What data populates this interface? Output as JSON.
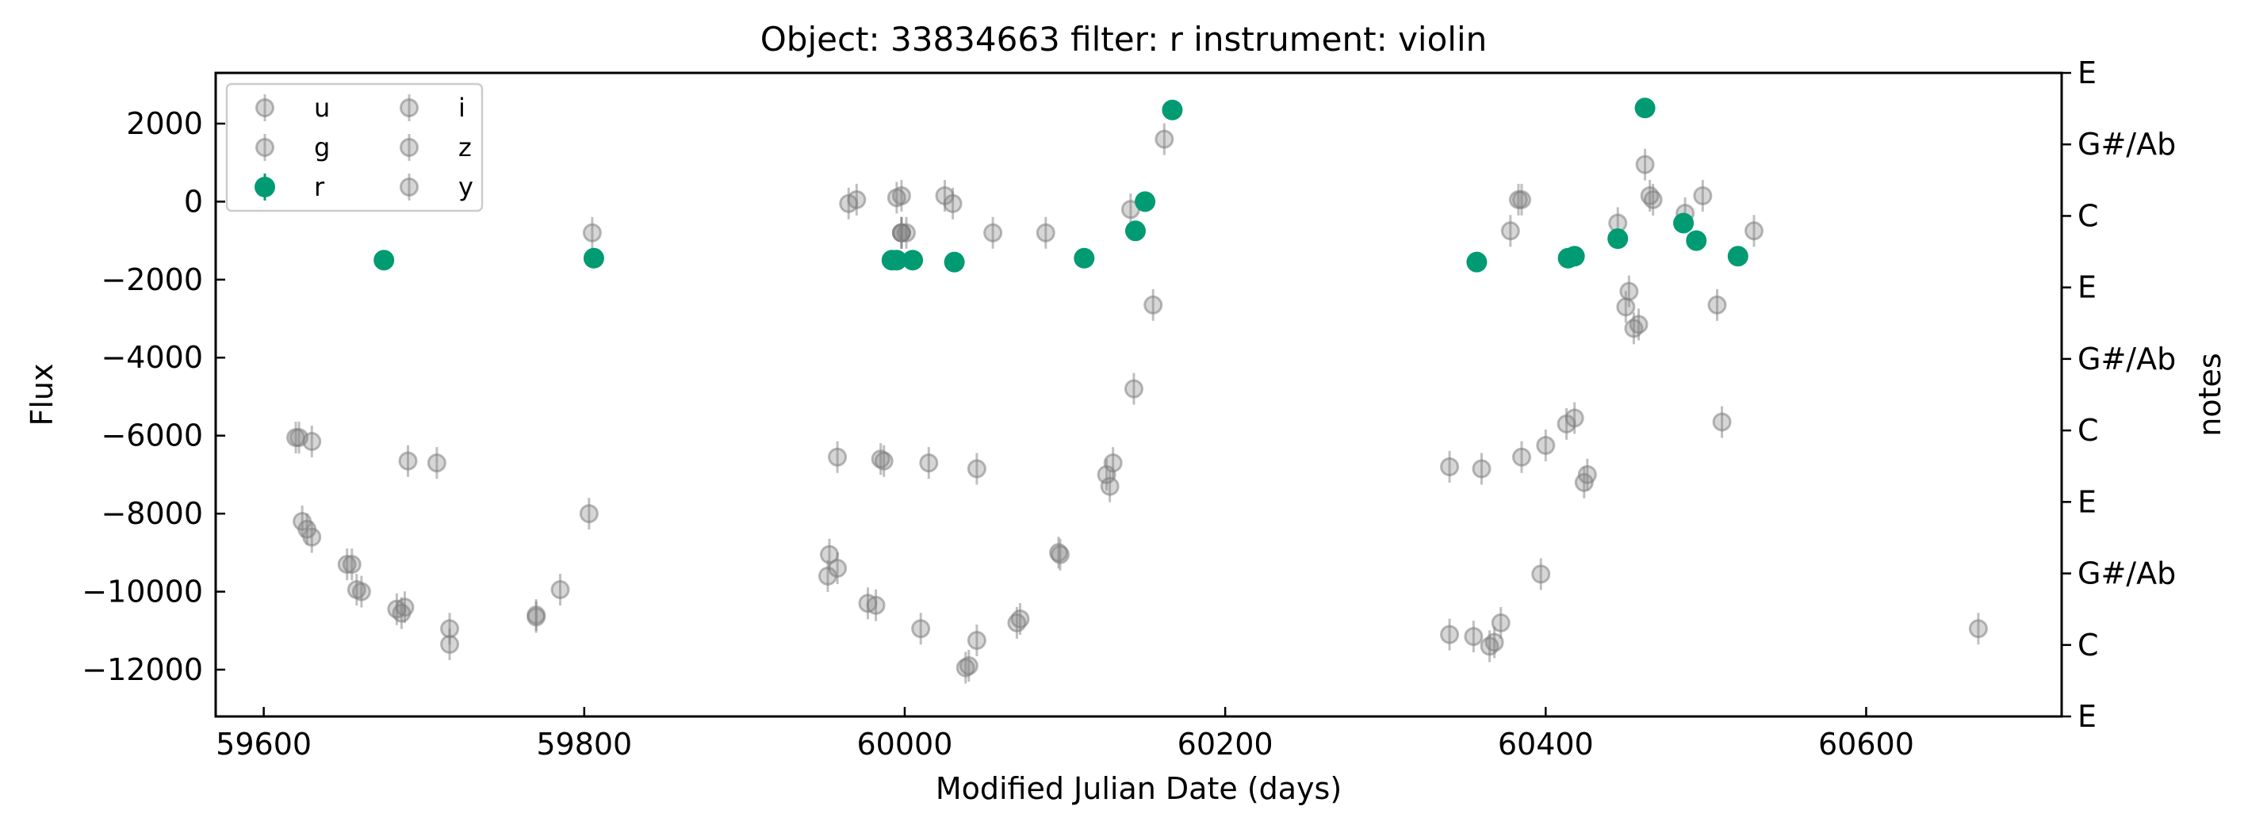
{
  "chart_data": {
    "type": "scatter",
    "title": "Object: 33834663 filter: r instrument: violin",
    "xlabel": "Modified Julian Date (days)",
    "ylabel": "Flux",
    "y2label": "notes",
    "xlim": [
      59570,
      60722
    ],
    "ylim": [
      -13200,
      3300
    ],
    "xticks": [
      59600,
      59800,
      60000,
      60200,
      60400,
      60600
    ],
    "yticks": [
      2000,
      0,
      -2000,
      -4000,
      -6000,
      -8000,
      -10000,
      -12000
    ],
    "y2ticks": [
      {
        "y": 3300,
        "label": "E"
      },
      {
        "y": 1467,
        "label": "G#/Ab"
      },
      {
        "y": -367,
        "label": "C"
      },
      {
        "y": -2200,
        "label": "E"
      },
      {
        "y": -4033,
        "label": "G#/Ab"
      },
      {
        "y": -5867,
        "label": "C"
      },
      {
        "y": -7700,
        "label": "E"
      },
      {
        "y": -9533,
        "label": "G#/Ab"
      },
      {
        "y": -11367,
        "label": "C"
      },
      {
        "y": -13200,
        "label": "E"
      }
    ],
    "grid": false,
    "legend": {
      "placement": "top-left",
      "columns": 2,
      "order": [
        "u",
        "g",
        "r",
        "i",
        "z",
        "y"
      ]
    },
    "colors": {
      "highlight": "#009b72",
      "faded": "#808080"
    },
    "series": [
      {
        "name": "r",
        "highlight": true,
        "points": [
          [
            59675,
            -1500
          ],
          [
            59806,
            -1450
          ],
          [
            59992,
            -1500
          ],
          [
            59995,
            -1500
          ],
          [
            60005,
            -1500
          ],
          [
            60031,
            -1550
          ],
          [
            60112,
            -1450
          ],
          [
            60144,
            -750
          ],
          [
            60150,
            0
          ],
          [
            60167,
            2350
          ],
          [
            60357,
            -1550
          ],
          [
            60414,
            -1450
          ],
          [
            60418,
            -1400
          ],
          [
            60445,
            -950
          ],
          [
            60462,
            2400
          ],
          [
            60486,
            -550
          ],
          [
            60494,
            -1000
          ],
          [
            60520,
            -1400
          ]
        ]
      },
      {
        "name": "u",
        "highlight": false,
        "points": [
          [
            59620,
            -6050
          ],
          [
            59622,
            -6050
          ],
          [
            59624,
            -8200
          ],
          [
            59627,
            -8400
          ],
          [
            59630,
            -8600
          ],
          [
            59652,
            -9300
          ],
          [
            59655,
            -9300
          ],
          [
            59658,
            -9950
          ],
          [
            59661,
            -10000
          ],
          [
            59683,
            -10450
          ],
          [
            59686,
            -10550
          ],
          [
            59688,
            -10400
          ],
          [
            59716,
            -10950
          ],
          [
            59770,
            -10650
          ],
          [
            59785,
            -9950
          ],
          [
            59803,
            -8000
          ],
          [
            59953,
            -9050
          ],
          [
            59958,
            -9400
          ],
          [
            59977,
            -10300
          ],
          [
            59982,
            -10350
          ],
          [
            60010,
            -10950
          ],
          [
            60038,
            -11950
          ],
          [
            60040,
            -11900
          ],
          [
            60045,
            -11250
          ],
          [
            60072,
            -10700
          ],
          [
            60096,
            -9000
          ],
          [
            60126,
            -7000
          ],
          [
            60128,
            -7300
          ],
          [
            60340,
            -11100
          ],
          [
            60355,
            -11150
          ],
          [
            60368,
            -11300
          ],
          [
            60372,
            -10800
          ],
          [
            60397,
            -9550
          ],
          [
            60424,
            -7200
          ],
          [
            60426,
            -7000
          ]
        ]
      },
      {
        "name": "g",
        "highlight": false,
        "points": [
          [
            59630,
            -6150
          ],
          [
            59690,
            -6650
          ],
          [
            59708,
            -6700
          ],
          [
            59716,
            -11350
          ],
          [
            59770,
            -10600
          ],
          [
            59952,
            -9600
          ],
          [
            59958,
            -6550
          ],
          [
            59985,
            -6600
          ],
          [
            59987,
            -6650
          ],
          [
            60015,
            -6700
          ],
          [
            60045,
            -6850
          ],
          [
            60070,
            -10800
          ],
          [
            60097,
            -9050
          ],
          [
            60130,
            -6700
          ],
          [
            60340,
            -6800
          ],
          [
            60360,
            -6850
          ],
          [
            60365,
            -11400
          ],
          [
            60385,
            -6550
          ],
          [
            60400,
            -6250
          ],
          [
            60413,
            -5700
          ],
          [
            60418,
            -5550
          ],
          [
            60510,
            -5650
          ],
          [
            60670,
            -10950
          ]
        ]
      },
      {
        "name": "i",
        "highlight": false,
        "points": [
          [
            59965,
            -50
          ],
          [
            59970,
            50
          ],
          [
            59995,
            100
          ],
          [
            59998,
            150
          ],
          [
            59998,
            -800
          ],
          [
            60025,
            150
          ],
          [
            60030,
            -50
          ],
          [
            60088,
            -800
          ],
          [
            60141,
            -200
          ],
          [
            60143,
            -4800
          ],
          [
            60155,
            -2650
          ],
          [
            60162,
            1600
          ],
          [
            60378,
            -750
          ],
          [
            60383,
            50
          ],
          [
            60385,
            50
          ],
          [
            60445,
            -550
          ],
          [
            60450,
            -2700
          ],
          [
            60452,
            -2300
          ],
          [
            60455,
            -3250
          ],
          [
            60458,
            -3150
          ],
          [
            60462,
            950
          ],
          [
            60465,
            150
          ],
          [
            60467,
            50
          ],
          [
            60487,
            -300
          ],
          [
            60498,
            150
          ],
          [
            60507,
            -2650
          ],
          [
            60530,
            -750
          ]
        ]
      },
      {
        "name": "z",
        "highlight": false,
        "points": [
          [
            59805,
            -800
          ],
          [
            59998,
            -800
          ],
          [
            60055,
            -800
          ]
        ]
      },
      {
        "name": "y",
        "highlight": false,
        "points": [
          [
            59998,
            -800
          ],
          [
            60001,
            -800
          ]
        ]
      }
    ]
  }
}
